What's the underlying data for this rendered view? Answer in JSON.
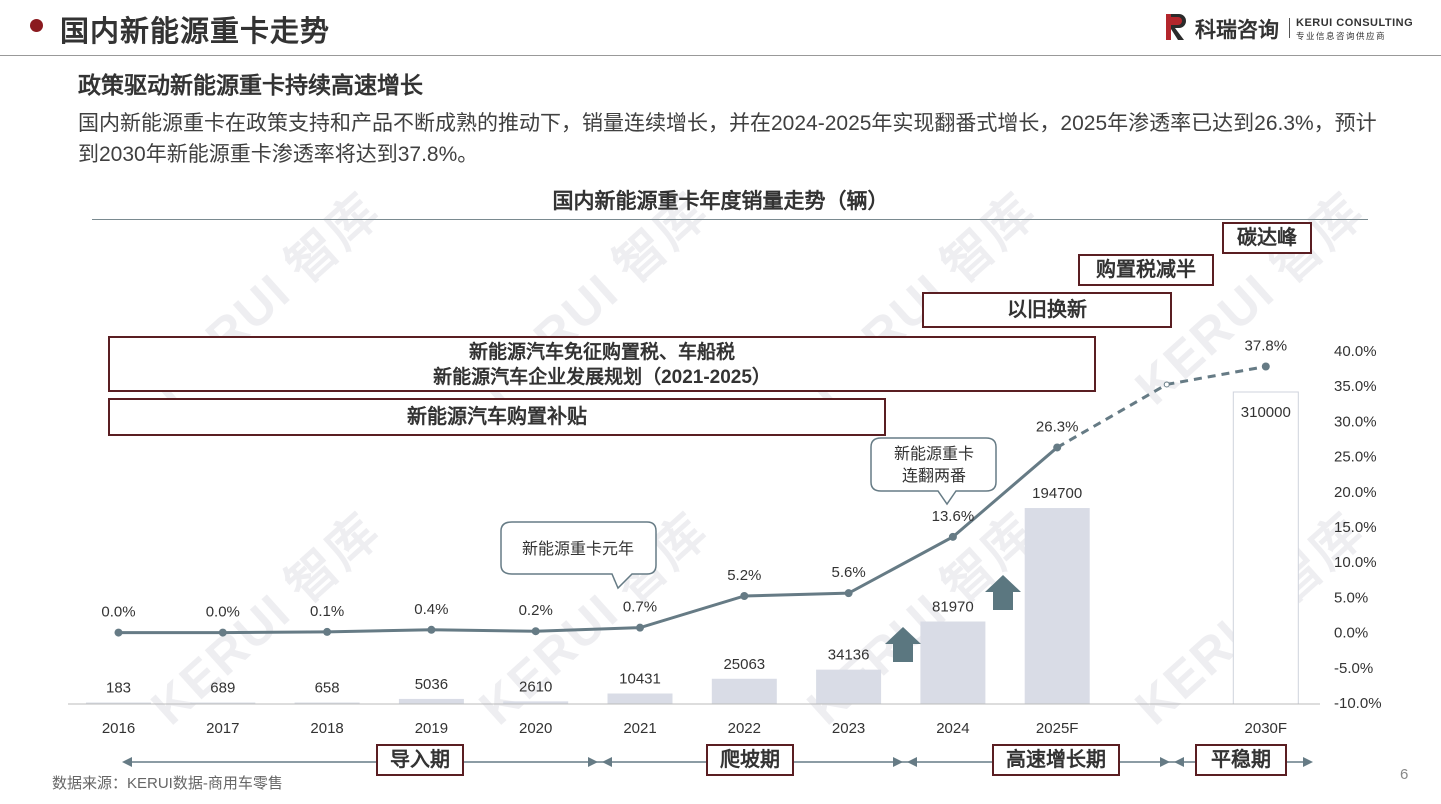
{
  "header": {
    "title": "国内新能源重卡走势",
    "logo_cn": "科瑞咨询",
    "logo_en": "KERUI CONSULTING",
    "logo_sub": "专业信息咨询供应商"
  },
  "subheading": "政策驱动新能源重卡持续高速增长",
  "description": "国内新能源重卡在政策支持和产品不断成熟的推动下，销量连续增长，并在2024-2025年实现翻番式增长，2025年渗透率已达到26.3%，预计到2030年新能源重卡渗透率将达到37.8%。",
  "watermark": "KERUI 智库",
  "policies": {
    "carbon_peak": "碳达峰",
    "purchase_tax_half": "购置税减半",
    "trade_in": "以旧换新",
    "exemption_line1": "新能源汽车免征购置税、车船税",
    "exemption_line2": "新能源汽车企业发展规划（2021-2025）",
    "subsidy": "新能源汽车购置补贴"
  },
  "callouts": {
    "first_year": "新能源重卡元年",
    "double_line1": "新能源重卡",
    "double_line2": "连翻两番"
  },
  "stages": {
    "intro": "导入期",
    "climb": "爬坡期",
    "rapid": "高速增长期",
    "stable": "平稳期"
  },
  "chart_data": {
    "type": "bar",
    "title": "国内新能源重卡年度销量走势（辆）",
    "categories": [
      "2016",
      "2017",
      "2018",
      "2019",
      "2020",
      "2021",
      "2022",
      "2023",
      "2024",
      "2025F",
      "",
      "2030F"
    ],
    "series": [
      {
        "type": "bar",
        "values": [
          183,
          689,
          658,
          5036,
          2610,
          10431,
          25063,
          34136,
          81970,
          194700,
          null,
          310000
        ]
      },
      {
        "type": "line",
        "axis": "right",
        "values": [
          0.0,
          0.0,
          0.1,
          0.4,
          0.2,
          0.7,
          5.2,
          5.6,
          13.6,
          26.3,
          null,
          37.8
        ],
        "labels": [
          "0.0%",
          "0.0%",
          "0.1%",
          "0.4%",
          "0.2%",
          "0.7%",
          "5.2%",
          "5.6%",
          "13.6%",
          "26.3%",
          "",
          "37.8%"
        ]
      }
    ],
    "y2_ticks": [
      "40.0%",
      "35.0%",
      "30.0%",
      "25.0%",
      "20.0%",
      "15.0%",
      "10.0%",
      "5.0%",
      "0.0%",
      "-5.0%",
      "-10.0%"
    ],
    "y2lim": [
      -10,
      40
    ],
    "grid": false,
    "colors": {
      "bar": "#d9dce6",
      "line": "#667b85",
      "policy_border": "#5a1e22",
      "arrow": "#5b7780"
    }
  },
  "footer": {
    "source": "数据来源：KERUI数据-商用车零售",
    "page": "6"
  }
}
